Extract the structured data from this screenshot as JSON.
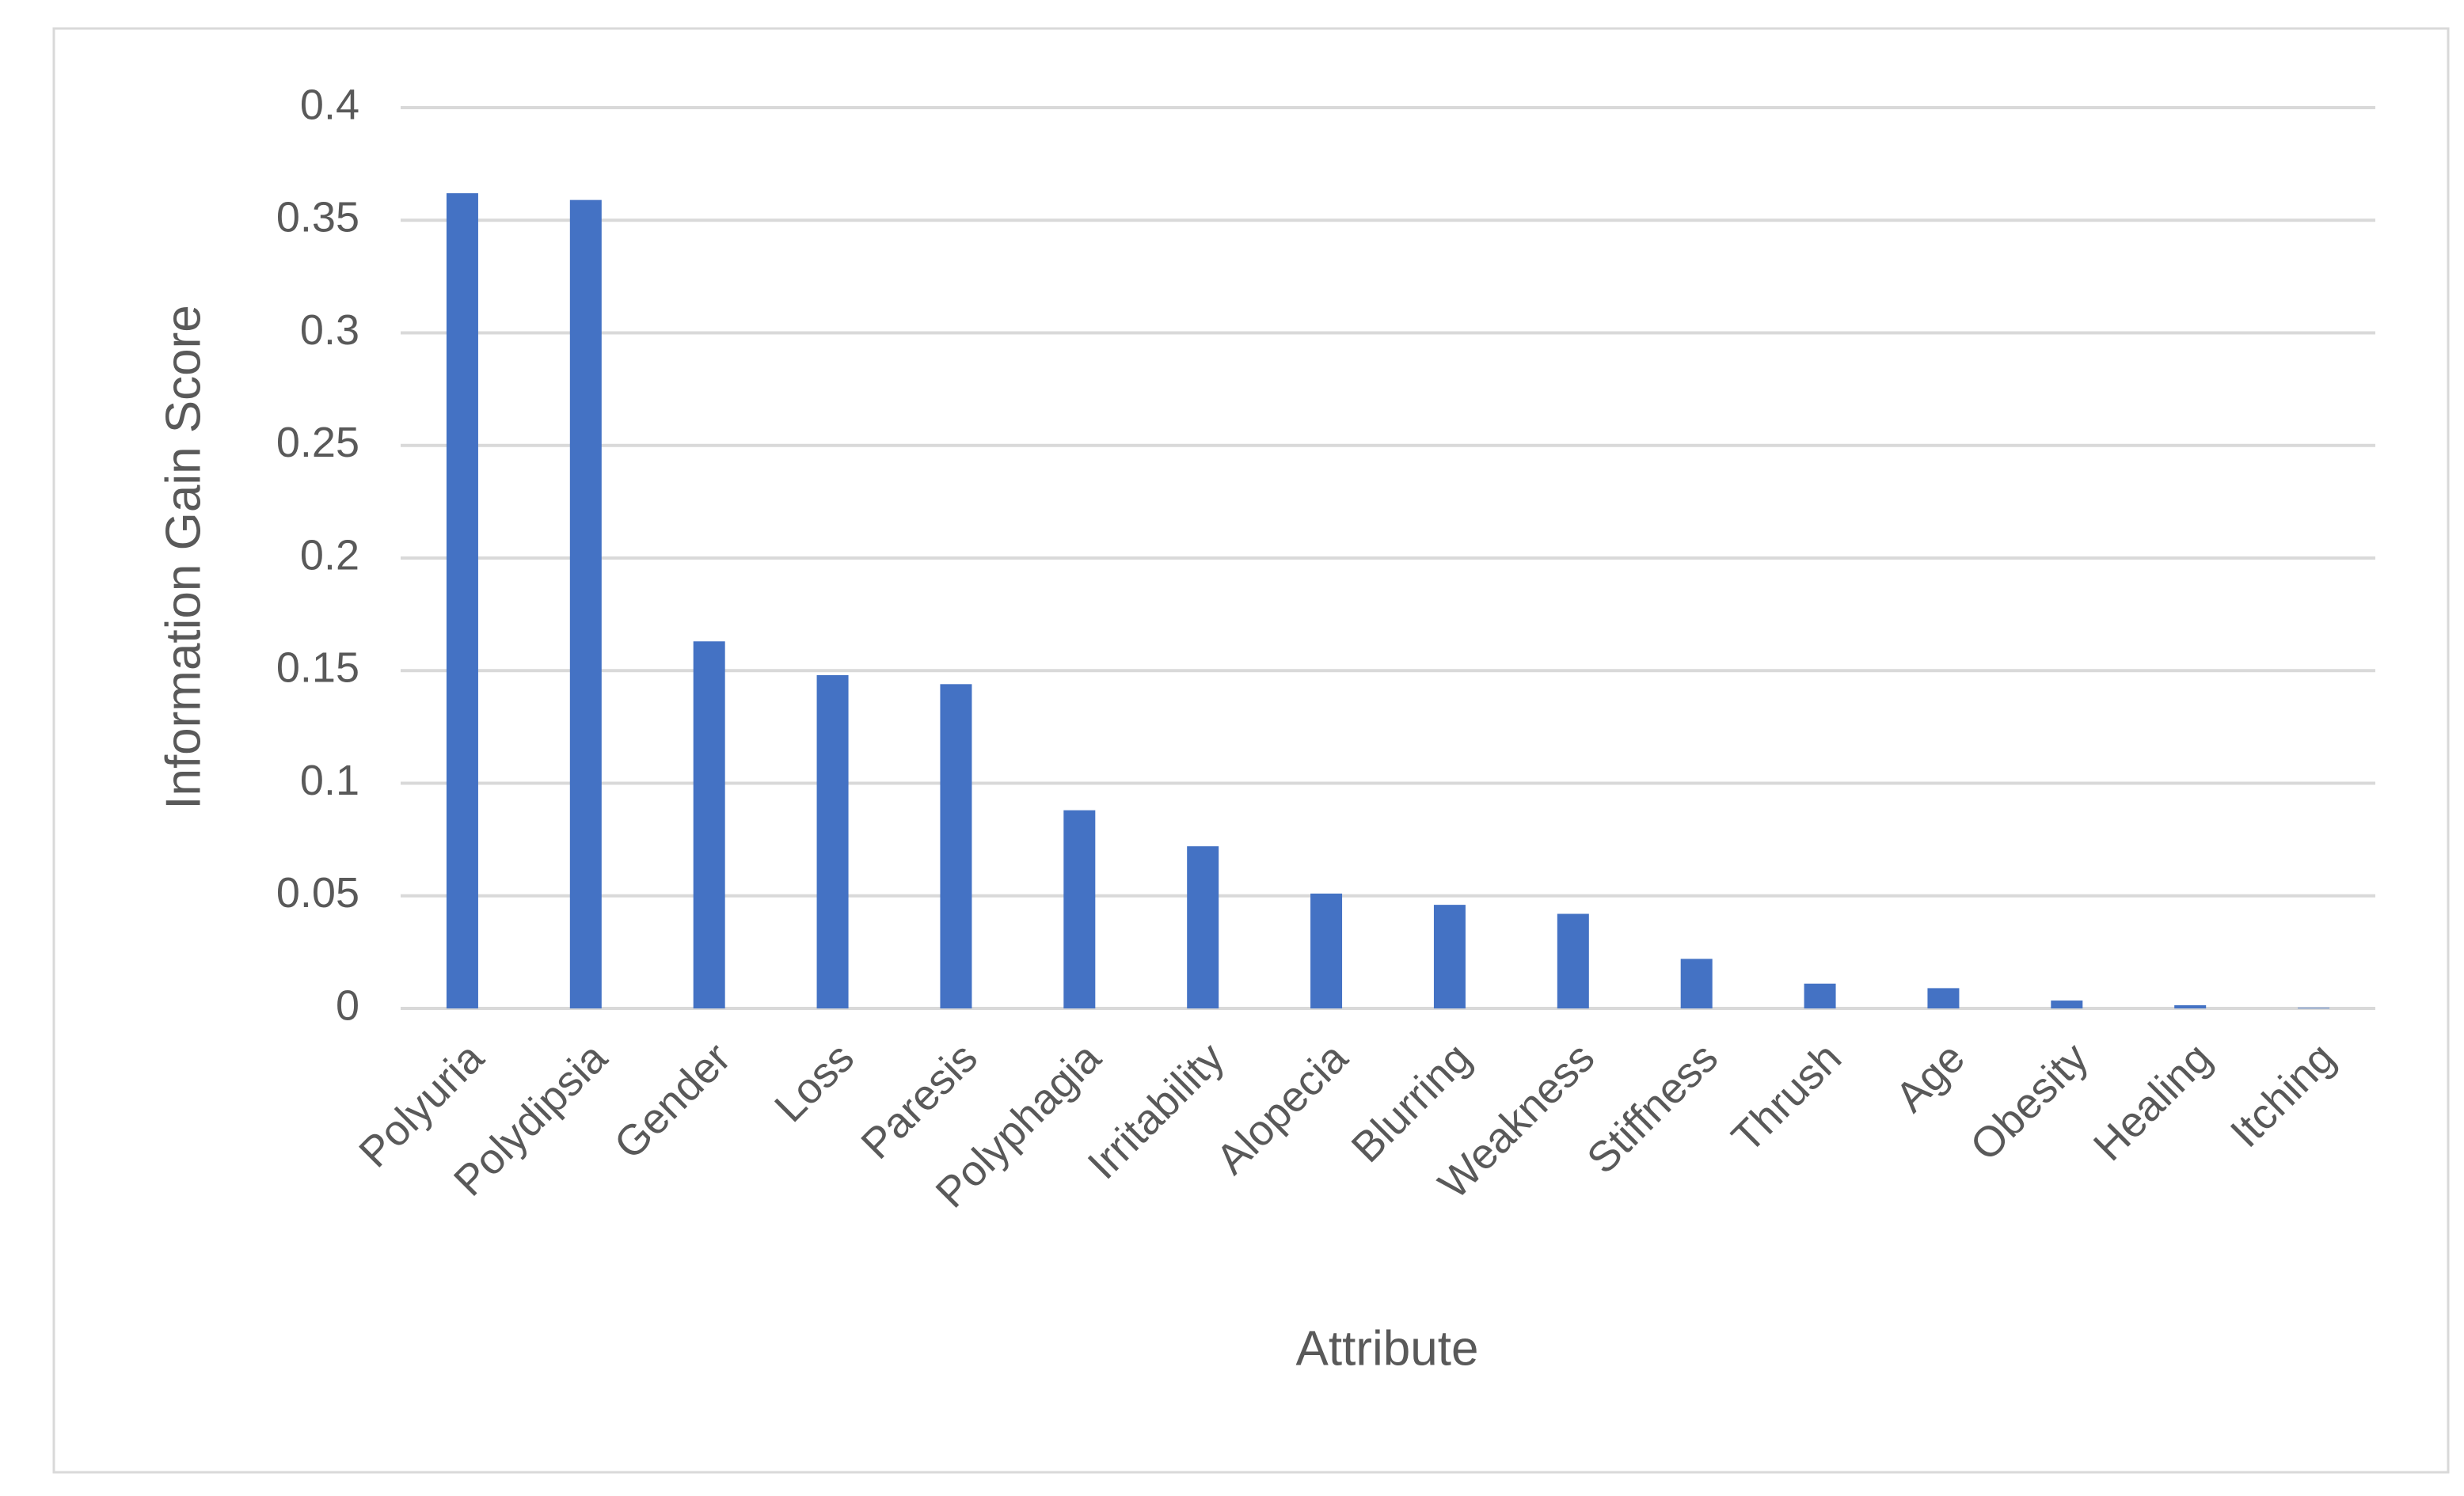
{
  "chart_data": {
    "type": "bar",
    "x_label": "Attribute",
    "y_label": "Information Gain Score",
    "categories": [
      "Polyuria",
      "Polydipsia",
      "Gender",
      "Loss",
      "Paresis",
      "Polyphagia",
      "Irritability",
      "Alopecia",
      "Blurring",
      "Weakness",
      "Stiffness",
      "Thrush",
      "Age",
      "Obesity",
      "Healing",
      "Itching"
    ],
    "values": [
      0.362,
      0.359,
      0.163,
      0.148,
      0.144,
      0.088,
      0.072,
      0.051,
      0.046,
      0.042,
      0.022,
      0.011,
      0.009,
      0.0035,
      0.0014,
      0.0003
    ],
    "color": "#4472c4",
    "ylim": [
      0,
      0.4
    ],
    "yticks": [
      0,
      0.05,
      0.1,
      0.15,
      0.2,
      0.25,
      0.3,
      0.35,
      0.4
    ],
    "grid": true
  }
}
